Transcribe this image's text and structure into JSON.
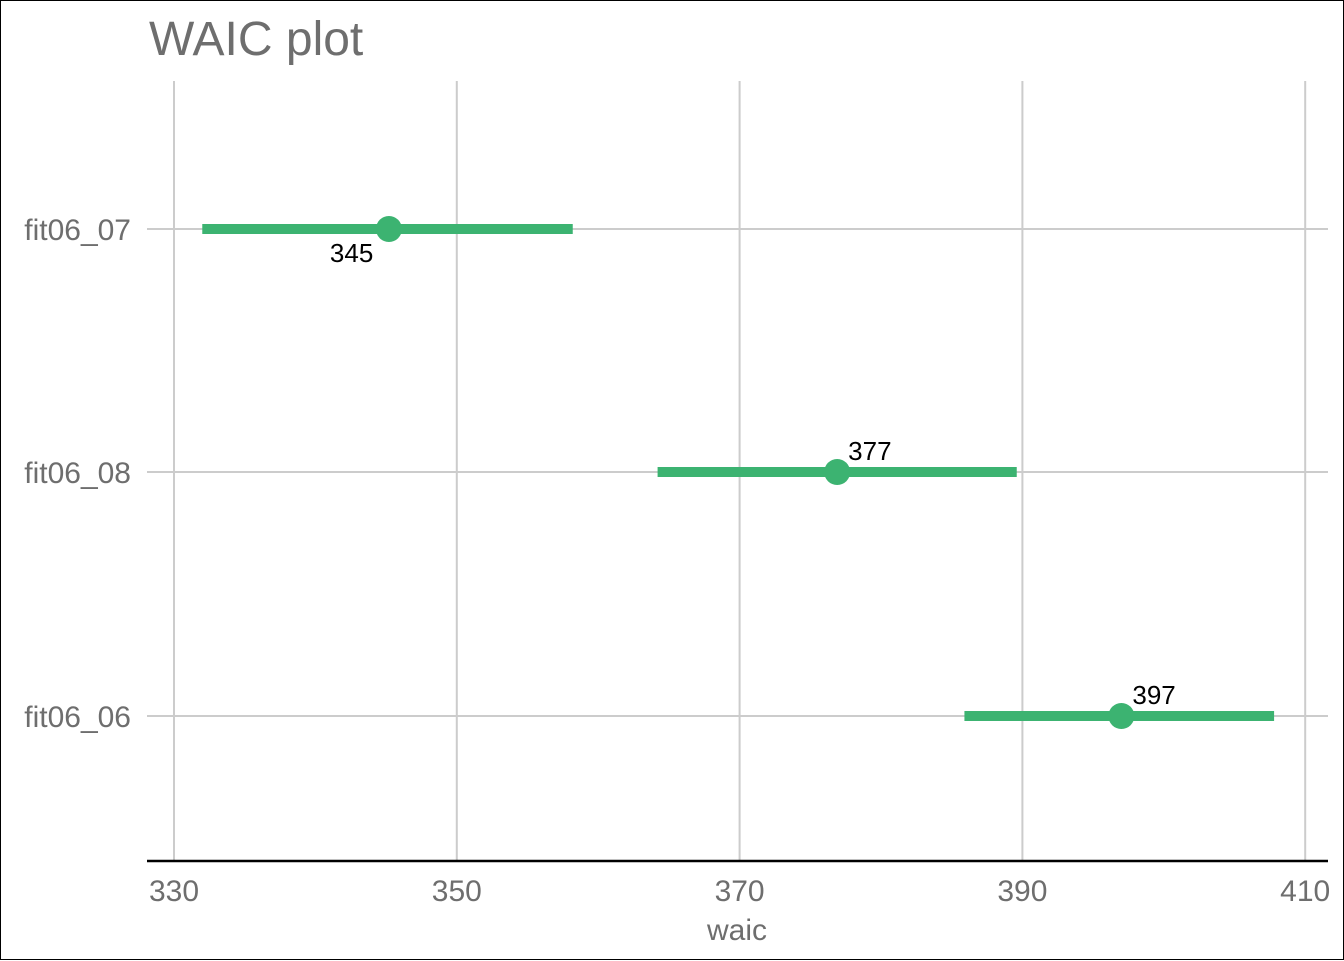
{
  "chart_data": {
    "type": "scatter",
    "title": "WAIC plot",
    "xlabel": "waic",
    "ylabel": "",
    "xlim": [
      329,
      411
    ],
    "xticks": [
      330,
      350,
      370,
      390,
      410
    ],
    "xtick_labels": [
      "330",
      "350",
      "370",
      "390",
      "410"
    ],
    "categories": [
      "fit06_07",
      "fit06_08",
      "fit06_06"
    ],
    "series": [
      {
        "points": [
          {
            "model": "fit06_07",
            "waic": 345.2,
            "lower": 332.0,
            "upper": 358.2,
            "label": "345",
            "label_position": "below-left"
          },
          {
            "model": "fit06_08",
            "waic": 376.9,
            "lower": 364.2,
            "upper": 389.6,
            "label": "377",
            "label_position": "above-right"
          },
          {
            "model": "fit06_06",
            "waic": 397.0,
            "lower": 385.9,
            "upper": 407.8,
            "label": "397",
            "label_position": "above-right"
          }
        ]
      }
    ],
    "grid": true,
    "colors": {
      "series": "#3cb371",
      "grid": "#cccccc",
      "axis": "#000000",
      "text": "#6e6e6e"
    }
  }
}
